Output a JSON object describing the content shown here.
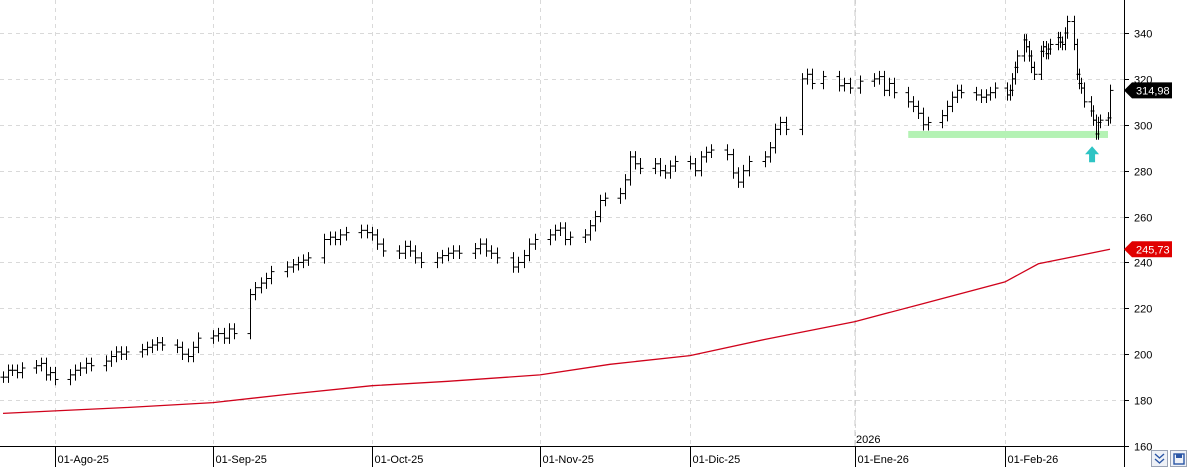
{
  "chart_data": {
    "type": "ohlc",
    "x_tick_labels": [
      "01-Ago-25",
      "01-Sep-25",
      "01-Oct-25",
      "01-Nov-25",
      "01-Dic-25",
      "01-Ene-26",
      "01-Feb-26"
    ],
    "year_marker": "2026",
    "y_ticks": [
      160,
      180,
      200,
      220,
      240,
      260,
      280,
      300,
      320,
      340
    ],
    "ylim": [
      160,
      350
    ],
    "grid": true,
    "price": {
      "series": [
        [
          "2025-07-21",
          190
        ],
        [
          "2025-07-22",
          193
        ],
        [
          "2025-07-23",
          193
        ],
        [
          "2025-07-24",
          192
        ],
        [
          "2025-07-25",
          194
        ],
        [
          "2025-07-28",
          195
        ],
        [
          "2025-07-29",
          196
        ],
        [
          "2025-07-30",
          191
        ],
        [
          "2025-07-31",
          192
        ],
        [
          "2025-08-01",
          189
        ],
        [
          "2025-08-04",
          191
        ],
        [
          "2025-08-05",
          193
        ],
        [
          "2025-08-06",
          194
        ],
        [
          "2025-08-07",
          196
        ],
        [
          "2025-08-08",
          195
        ],
        [
          "2025-08-11",
          197
        ],
        [
          "2025-08-12",
          199
        ],
        [
          "2025-08-13",
          201
        ],
        [
          "2025-08-14",
          200
        ],
        [
          "2025-08-15",
          201
        ],
        [
          "2025-08-18",
          202
        ],
        [
          "2025-08-19",
          203
        ],
        [
          "2025-08-20",
          204
        ],
        [
          "2025-08-21",
          205
        ],
        [
          "2025-08-22",
          204
        ],
        [
          "2025-08-25",
          203
        ],
        [
          "2025-08-26",
          200
        ],
        [
          "2025-08-27",
          199
        ],
        [
          "2025-08-28",
          203
        ],
        [
          "2025-08-29",
          207
        ],
        [
          "2025-09-01",
          208
        ],
        [
          "2025-09-02",
          209
        ],
        [
          "2025-09-03",
          207
        ],
        [
          "2025-09-04",
          211
        ],
        [
          "2025-09-05",
          209
        ],
        [
          "2025-09-08",
          226
        ],
        [
          "2025-09-09",
          229
        ],
        [
          "2025-09-10",
          231
        ],
        [
          "2025-09-11",
          233
        ],
        [
          "2025-09-12",
          236
        ],
        [
          "2025-09-15",
          238
        ],
        [
          "2025-09-16",
          239
        ],
        [
          "2025-09-17",
          240
        ],
        [
          "2025-09-18",
          241
        ],
        [
          "2025-09-19",
          242
        ],
        [
          "2025-09-22",
          250
        ],
        [
          "2025-09-23",
          251
        ],
        [
          "2025-09-24",
          250
        ],
        [
          "2025-09-25",
          252
        ],
        [
          "2025-09-26",
          253
        ],
        [
          "2025-09-29",
          254
        ],
        [
          "2025-09-30",
          253
        ],
        [
          "2025-10-01",
          252
        ],
        [
          "2025-10-02",
          248
        ],
        [
          "2025-10-03",
          245
        ],
        [
          "2025-10-06",
          244
        ],
        [
          "2025-10-07",
          247
        ],
        [
          "2025-10-08",
          245
        ],
        [
          "2025-10-09",
          242
        ],
        [
          "2025-10-10",
          240
        ],
        [
          "2025-10-13",
          242
        ],
        [
          "2025-10-14",
          243
        ],
        [
          "2025-10-15",
          244
        ],
        [
          "2025-10-16",
          245
        ],
        [
          "2025-10-17",
          244
        ],
        [
          "2025-10-20",
          246
        ],
        [
          "2025-10-21",
          248
        ],
        [
          "2025-10-22",
          245
        ],
        [
          "2025-10-23",
          244
        ],
        [
          "2025-10-24",
          242
        ],
        [
          "2025-10-27",
          238
        ],
        [
          "2025-10-28",
          240
        ],
        [
          "2025-10-29",
          243
        ],
        [
          "2025-10-30",
          248
        ],
        [
          "2025-10-31",
          250
        ],
        [
          "2025-11-03",
          252
        ],
        [
          "2025-11-04",
          254
        ],
        [
          "2025-11-05",
          255
        ],
        [
          "2025-11-06",
          250
        ],
        [
          "2025-11-07",
          251
        ],
        [
          "2025-11-10",
          252
        ],
        [
          "2025-11-11",
          256
        ],
        [
          "2025-11-12",
          260
        ],
        [
          "2025-11-13",
          267
        ],
        [
          "2025-11-14",
          268
        ],
        [
          "2025-11-17",
          270
        ],
        [
          "2025-11-18",
          276
        ],
        [
          "2025-11-19",
          286
        ],
        [
          "2025-11-20",
          283
        ],
        [
          "2025-11-21",
          281
        ],
        [
          "2025-11-24",
          283
        ],
        [
          "2025-11-25",
          280
        ],
        [
          "2025-11-26",
          279
        ],
        [
          "2025-11-27",
          282
        ],
        [
          "2025-11-28",
          284
        ],
        [
          "2025-12-01",
          283
        ],
        [
          "2025-12-02",
          280
        ],
        [
          "2025-12-03",
          286
        ],
        [
          "2025-12-04",
          288
        ],
        [
          "2025-12-05",
          289
        ],
        [
          "2025-12-08",
          287
        ],
        [
          "2025-12-09",
          279
        ],
        [
          "2025-12-10",
          275
        ],
        [
          "2025-12-11",
          280
        ],
        [
          "2025-12-12",
          284
        ],
        [
          "2025-12-15",
          286
        ],
        [
          "2025-12-16",
          290
        ],
        [
          "2025-12-17",
          298
        ],
        [
          "2025-12-18",
          301
        ],
        [
          "2025-12-19",
          298
        ],
        [
          "2025-12-22",
          320
        ],
        [
          "2025-12-23",
          322
        ],
        [
          "2025-12-24",
          318
        ],
        [
          "2025-12-26",
          321
        ],
        [
          "2025-12-29",
          317
        ],
        [
          "2025-12-30",
          318
        ],
        [
          "2025-12-31",
          316
        ],
        [
          "2026-01-02",
          319
        ],
        [
          "2026-01-05",
          320
        ],
        [
          "2026-01-06",
          321
        ],
        [
          "2026-01-07",
          315
        ],
        [
          "2026-01-08",
          318
        ],
        [
          "2026-01-09",
          314
        ],
        [
          "2026-01-12",
          310
        ],
        [
          "2026-01-13",
          308
        ],
        [
          "2026-01-14",
          305
        ],
        [
          "2026-01-15",
          300
        ],
        [
          "2026-01-16",
          301
        ],
        [
          "2026-01-19",
          304
        ],
        [
          "2026-01-20",
          308
        ],
        [
          "2026-01-21",
          312
        ],
        [
          "2026-01-22",
          315
        ],
        [
          "2026-01-23",
          314
        ],
        [
          "2026-01-26",
          313
        ],
        [
          "2026-01-27",
          312
        ],
        [
          "2026-01-28",
          313
        ],
        [
          "2026-01-29",
          314
        ],
        [
          "2026-01-30",
          316
        ],
        [
          "2026-02-02",
          313
        ],
        [
          "2026-02-03",
          315
        ],
        [
          "2026-02-04",
          320
        ],
        [
          "2026-02-05",
          325
        ],
        [
          "2026-02-06",
          330
        ],
        [
          "2026-02-09",
          337
        ],
        [
          "2026-02-10",
          334
        ],
        [
          "2026-02-11",
          330
        ],
        [
          "2026-02-12",
          325
        ],
        [
          "2026-02-13",
          322
        ],
        [
          "2026-02-16",
          332
        ],
        [
          "2026-02-17",
          334
        ],
        [
          "2026-02-18",
          331
        ],
        [
          "2026-02-19",
          333
        ],
        [
          "2026-02-20",
          335
        ],
        [
          "2026-02-23",
          338
        ],
        [
          "2026-02-24",
          336
        ],
        [
          "2026-02-25",
          335
        ],
        [
          "2026-02-26",
          340
        ],
        [
          "2026-02-27",
          345
        ],
        [
          "2026-03-02",
          335
        ],
        [
          "2026-03-03",
          322
        ],
        [
          "2026-03-04",
          318
        ],
        [
          "2026-03-05",
          316
        ],
        [
          "2026-03-06",
          310
        ],
        [
          "2026-03-09",
          306
        ],
        [
          "2026-03-10",
          302
        ],
        [
          "2026-03-11",
          296
        ],
        [
          "2026-03-12",
          301
        ],
        [
          "2026-03-13",
          302
        ],
        [
          "2026-03-16",
          303
        ],
        [
          "2026-03-17",
          314.98
        ]
      ],
      "last_value": "314,98",
      "label_bg": "#000000",
      "label_fg": "#ffffff"
    },
    "moving_average": {
      "color": "#d0021b",
      "series": [
        [
          "2025-07-21",
          174.2
        ],
        [
          "2025-08-01",
          175.3
        ],
        [
          "2025-08-15",
          176.8
        ],
        [
          "2025-09-01",
          178.9
        ],
        [
          "2025-09-15",
          182.5
        ],
        [
          "2025-10-01",
          186.3
        ],
        [
          "2025-10-15",
          188.2
        ],
        [
          "2025-11-01",
          191.0
        ],
        [
          "2025-11-15",
          195.6
        ],
        [
          "2025-12-01",
          199.4
        ],
        [
          "2025-12-15",
          206.4
        ],
        [
          "2026-01-01",
          214.2
        ],
        [
          "2026-01-15",
          222.0
        ],
        [
          "2026-02-01",
          231.5
        ],
        [
          "2026-02-15",
          239.4
        ],
        [
          "2026-03-17",
          245.73
        ]
      ],
      "last_value": "245,73",
      "label_bg": "#e00000",
      "label_fg": "#ffffff"
    },
    "support_line": {
      "value": 296,
      "from": "2026-01-12",
      "to": "2026-03-17",
      "color": "#b4f2b4"
    },
    "arrow": {
      "date": "2026-03-12",
      "value": 285,
      "direction": "up",
      "color": "#2ec4c4"
    }
  },
  "corner_buttons": [
    {
      "icon": "double-chevron-down-icon"
    },
    {
      "icon": "save-icon"
    }
  ]
}
